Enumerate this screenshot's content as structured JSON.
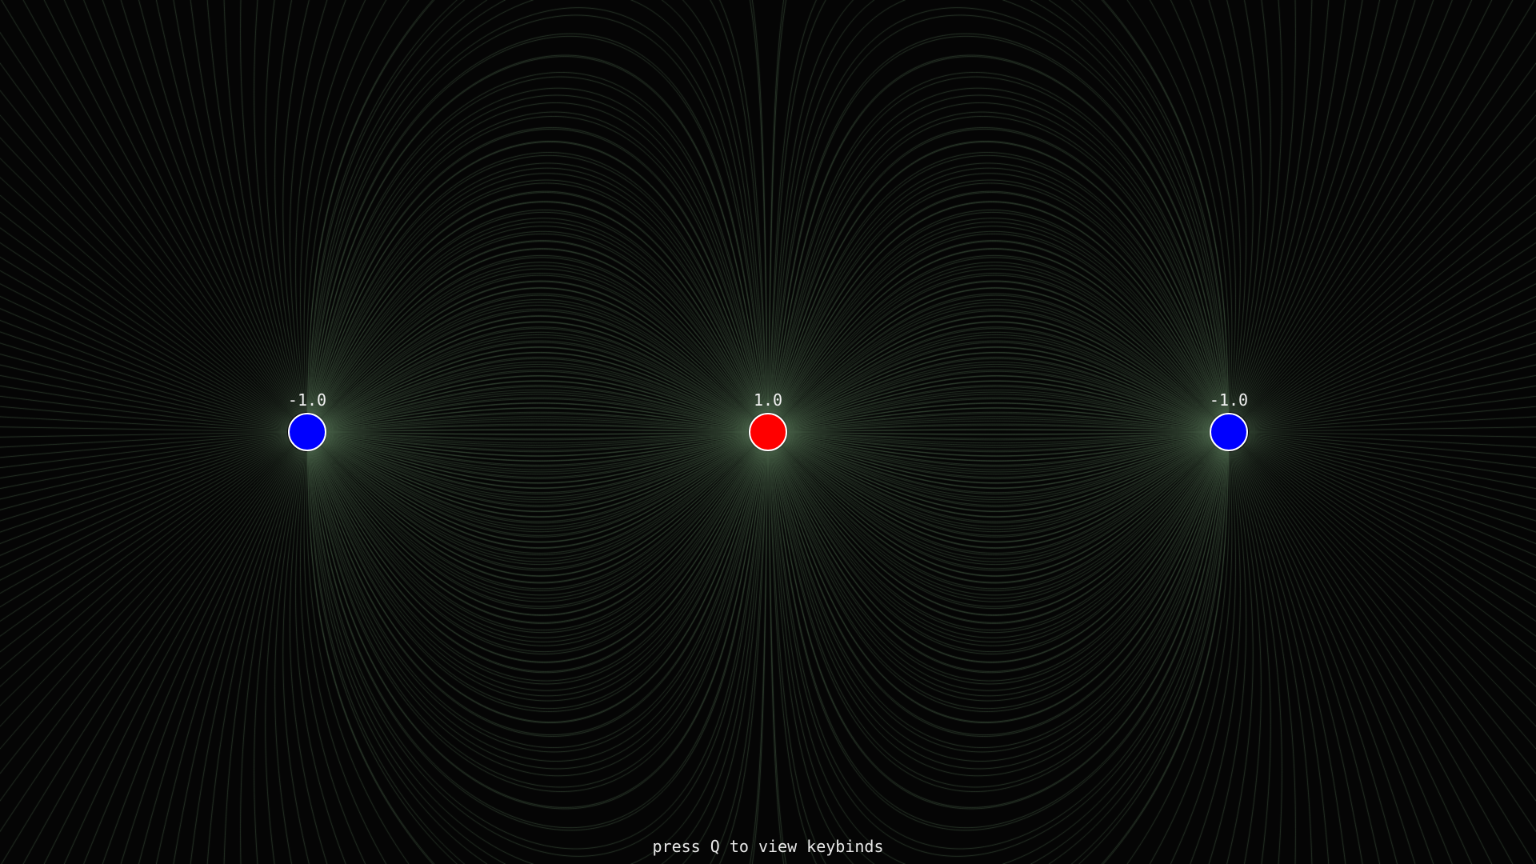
{
  "charges": [
    {
      "value": -1.0,
      "label": "-1.0",
      "color": "#0000ff"
    },
    {
      "value": 1.0,
      "label": "1.0",
      "color": "#ff0000"
    },
    {
      "value": -1.0,
      "label": "-1.0",
      "color": "#0000ff"
    }
  ],
  "field_line_color": "#5a7a5a",
  "background_color": "#050505",
  "hint": {
    "text": "press Q to view keybinds"
  }
}
